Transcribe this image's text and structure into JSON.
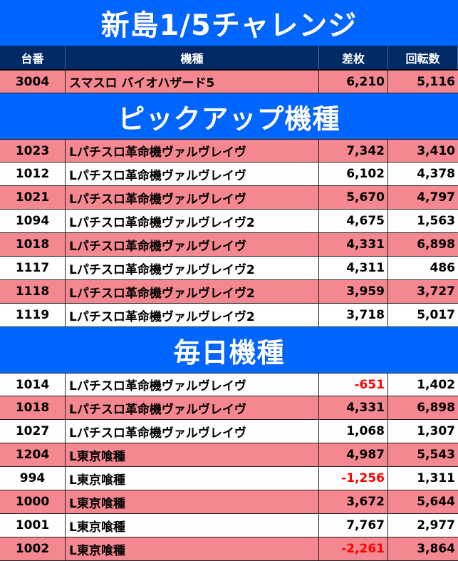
{
  "title": "新島1/5チャレンジ",
  "header": {
    "machine_no": "台番",
    "model": "機種",
    "diff": "差枚",
    "spins": "回転数"
  },
  "featured": [
    {
      "no": "3004",
      "name": "スマスロ バイオハザード5",
      "diff": "6,210",
      "spins": "5,116"
    }
  ],
  "pickup_title": "ピックアップ機種",
  "pickup": [
    {
      "no": "1023",
      "name": "Lパチスロ革命機ヴァルヴレイヴ",
      "diff": "7,342",
      "spins": "3,410"
    },
    {
      "no": "1012",
      "name": "Lパチスロ革命機ヴァルヴレイヴ",
      "diff": "6,102",
      "spins": "4,378"
    },
    {
      "no": "1021",
      "name": "Lパチスロ革命機ヴァルヴレイヴ",
      "diff": "5,670",
      "spins": "4,797"
    },
    {
      "no": "1094",
      "name": "Lパチスロ革命機ヴァルヴレイヴ2",
      "diff": "4,675",
      "spins": "1,563"
    },
    {
      "no": "1018",
      "name": "Lパチスロ革命機ヴァルヴレイヴ",
      "diff": "4,331",
      "spins": "6,898"
    },
    {
      "no": "1117",
      "name": "Lパチスロ革命機ヴァルヴレイヴ2",
      "diff": "4,311",
      "spins": "486"
    },
    {
      "no": "1118",
      "name": "Lパチスロ革命機ヴァルヴレイヴ2",
      "diff": "3,959",
      "spins": "3,727"
    },
    {
      "no": "1119",
      "name": "Lパチスロ革命機ヴァルヴレイヴ2",
      "diff": "3,718",
      "spins": "5,017"
    }
  ],
  "daily_title": "毎日機種",
  "daily": [
    {
      "no": "1014",
      "name": "Lパチスロ革命機ヴァルヴレイヴ",
      "diff": "-651",
      "spins": "1,402",
      "negative": true
    },
    {
      "no": "1018",
      "name": "Lパチスロ革命機ヴァルヴレイヴ",
      "diff": "4,331",
      "spins": "6,898"
    },
    {
      "no": "1027",
      "name": "Lパチスロ革命機ヴァルヴレイヴ",
      "diff": "1,068",
      "spins": "1,307"
    },
    {
      "no": "1204",
      "name": "L東京喰種",
      "diff": "4,987",
      "spins": "5,543"
    },
    {
      "no": "994",
      "name": "L東京喰種",
      "diff": "-1,256",
      "spins": "1,311",
      "negative": true
    },
    {
      "no": "1000",
      "name": "L東京喰種",
      "diff": "3,672",
      "spins": "5,644"
    },
    {
      "no": "1001",
      "name": "L東京喰種",
      "diff": "7,767",
      "spins": "2,977"
    },
    {
      "no": "1002",
      "name": "L東京喰種",
      "diff": "-2,261",
      "spins": "3,864",
      "negative": true
    }
  ],
  "colors": {
    "banner": "#0066ff",
    "header": "#002a66",
    "row_pink": "#f4878f",
    "row_white": "#ffffff",
    "negative": "#ff0000"
  }
}
